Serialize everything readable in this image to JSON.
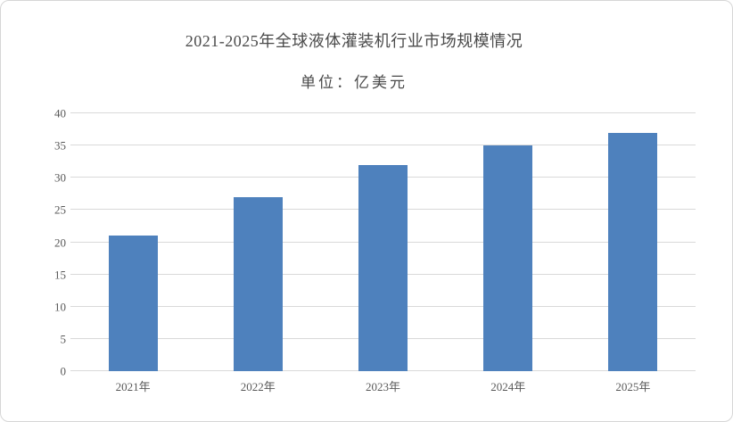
{
  "chart_data": {
    "type": "bar",
    "title": "2021-2025年全球液体灌装机行业市场规模情况",
    "subtitle": "单位：亿美元",
    "categories": [
      "2021年",
      "2022年",
      "2023年",
      "2024年",
      "2025年"
    ],
    "values": [
      21,
      27,
      32,
      35,
      37
    ],
    "xlabel": "",
    "ylabel": "",
    "ylim": [
      0,
      40
    ],
    "yticks": [
      0,
      5,
      10,
      15,
      20,
      25,
      30,
      35,
      40
    ],
    "grid": "horizontal",
    "legend_position": "none",
    "bar_color": "#4E81BD",
    "gridline_color": "#D9D9D9",
    "label_color": "#595959",
    "title_color": "#4A4A4A"
  }
}
